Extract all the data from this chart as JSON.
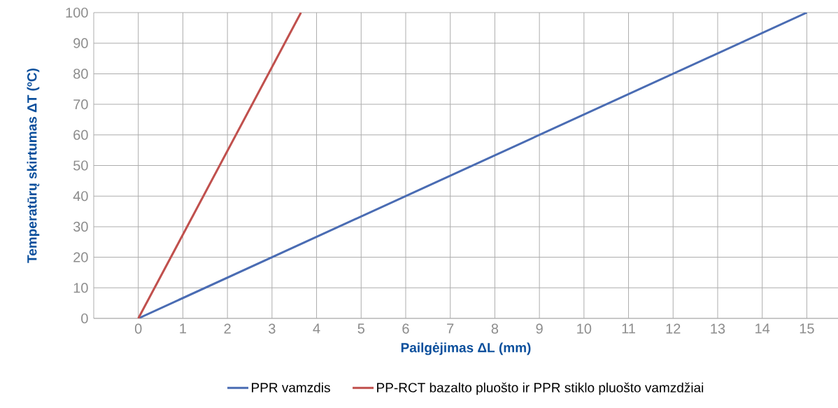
{
  "chart_data": {
    "type": "line",
    "xlabel": "Pailgėjimas ΔL (mm)",
    "ylabel": "Temperatūrų skirtumas ΔT (ºC)",
    "xlim": [
      -1,
      15.7
    ],
    "ylim": [
      0,
      100
    ],
    "xticks": [
      0,
      1,
      2,
      3,
      4,
      5,
      6,
      7,
      8,
      9,
      10,
      11,
      12,
      13,
      14,
      15
    ],
    "yticks": [
      0,
      10,
      20,
      30,
      40,
      50,
      60,
      70,
      80,
      90,
      100
    ],
    "grid": true,
    "legend": "bottom",
    "series": [
      {
        "name": "PPR vamzdis",
        "color": "#4a6cb3",
        "x": [
          0,
          15
        ],
        "values": [
          0,
          100
        ]
      },
      {
        "name": "PP-RCT bazalto pluošto ir PPR stiklo pluošto vamzdžiai",
        "color": "#c0504d",
        "x": [
          0,
          3.65
        ],
        "values": [
          0,
          100
        ]
      }
    ]
  }
}
